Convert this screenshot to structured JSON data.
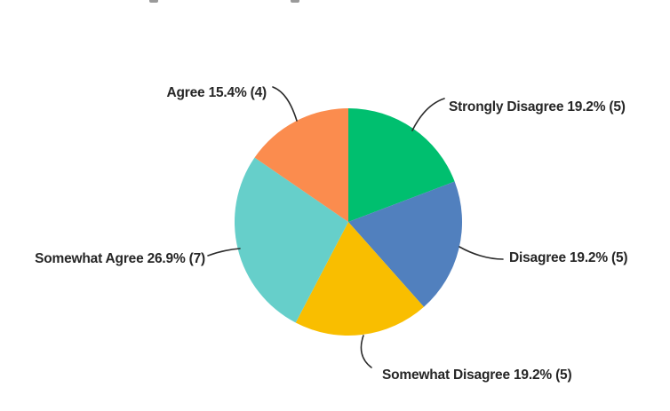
{
  "page": {
    "background_color": "#ffffff"
  },
  "chart_data": {
    "type": "pie",
    "title": "",
    "direction": "clockwise",
    "start_angle_deg": 0,
    "legend_position": "none",
    "labels_style": "outside-with-leader-lines",
    "label_color": "#262626",
    "leader_line_color": "#2b2b2b",
    "slices": [
      {
        "name": "Strongly Disagree",
        "percent": 19.2,
        "count": 5,
        "color": "#00BF6F",
        "label": "Strongly Disagree 19.2% (5)"
      },
      {
        "name": "Disagree",
        "percent": 19.2,
        "count": 5,
        "color": "#5180BE",
        "label": "Disagree 19.2% (5)"
      },
      {
        "name": "Somewhat Disagree",
        "percent": 19.2,
        "count": 5,
        "color": "#F9BE00",
        "label": "Somewhat Disagree 19.2% (5)"
      },
      {
        "name": "Somewhat Agree",
        "percent": 26.9,
        "count": 7,
        "color": "#66CFCA",
        "label": "Somewhat Agree 26.9% (7)"
      },
      {
        "name": "Agree",
        "percent": 15.4,
        "count": 4,
        "color": "#FB8C4E",
        "label": "Agree 15.4% (4)"
      }
    ]
  }
}
